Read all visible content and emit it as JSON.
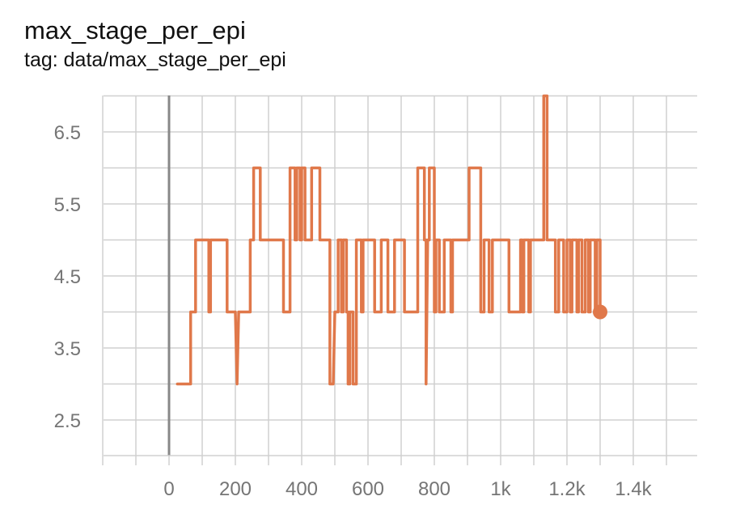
{
  "header": {
    "title": "max_stage_per_epi",
    "subtitle": "tag: data/max_stage_per_epi"
  },
  "colors": {
    "series": "#e0784a",
    "grid": "#d0d0d0",
    "zero_axis": "#888888",
    "tick_text": "#757575"
  },
  "chart_data": {
    "type": "line",
    "title": "max_stage_per_epi",
    "subtitle": "tag: data/max_stage_per_epi",
    "xlim": [
      -200,
      1600
    ],
    "ylim": [
      2,
      7
    ],
    "grid": true,
    "legend": "none",
    "x_ticks": [
      {
        "value": 0,
        "label": "0"
      },
      {
        "value": 200,
        "label": "200"
      },
      {
        "value": 400,
        "label": "400"
      },
      {
        "value": 600,
        "label": "600"
      },
      {
        "value": 800,
        "label": "800"
      },
      {
        "value": 1000,
        "label": "1k"
      },
      {
        "value": 1200,
        "label": "1.2k"
      },
      {
        "value": 1400,
        "label": "1.4k"
      }
    ],
    "y_ticks": [
      {
        "value": 2.5,
        "label": "2.5"
      },
      {
        "value": 3.5,
        "label": "3.5"
      },
      {
        "value": 4.5,
        "label": "4.5"
      },
      {
        "value": 5.5,
        "label": "5.5"
      },
      {
        "value": 6.5,
        "label": "6.5"
      }
    ],
    "series": [
      {
        "color": "#e0784a",
        "points": [
          [
            25,
            3
          ],
          [
            65,
            3
          ],
          [
            65,
            4
          ],
          [
            80,
            4
          ],
          [
            80,
            5
          ],
          [
            120,
            5
          ],
          [
            120,
            4
          ],
          [
            125,
            4
          ],
          [
            125,
            5
          ],
          [
            175,
            5
          ],
          [
            175,
            4
          ],
          [
            200,
            4
          ],
          [
            205,
            3
          ],
          [
            210,
            4
          ],
          [
            245,
            4
          ],
          [
            245,
            5
          ],
          [
            255,
            5
          ],
          [
            255,
            6
          ],
          [
            275,
            6
          ],
          [
            275,
            5
          ],
          [
            345,
            5
          ],
          [
            345,
            4
          ],
          [
            365,
            4
          ],
          [
            365,
            6
          ],
          [
            380,
            6
          ],
          [
            380,
            5
          ],
          [
            385,
            5
          ],
          [
            385,
            6
          ],
          [
            395,
            6
          ],
          [
            395,
            5
          ],
          [
            400,
            5
          ],
          [
            400,
            6
          ],
          [
            410,
            6
          ],
          [
            410,
            5
          ],
          [
            430,
            5
          ],
          [
            430,
            6
          ],
          [
            455,
            6
          ],
          [
            455,
            5
          ],
          [
            485,
            5
          ],
          [
            485,
            3
          ],
          [
            495,
            3
          ],
          [
            500,
            4
          ],
          [
            510,
            4
          ],
          [
            510,
            5
          ],
          [
            520,
            5
          ],
          [
            520,
            4
          ],
          [
            525,
            4
          ],
          [
            525,
            5
          ],
          [
            535,
            5
          ],
          [
            535,
            4
          ],
          [
            540,
            4
          ],
          [
            540,
            3
          ],
          [
            545,
            3
          ],
          [
            545,
            4
          ],
          [
            555,
            4
          ],
          [
            555,
            3
          ],
          [
            565,
            3
          ],
          [
            565,
            5
          ],
          [
            580,
            5
          ],
          [
            580,
            4
          ],
          [
            585,
            4
          ],
          [
            585,
            5
          ],
          [
            620,
            5
          ],
          [
            620,
            4
          ],
          [
            640,
            4
          ],
          [
            640,
            5
          ],
          [
            660,
            5
          ],
          [
            660,
            4
          ],
          [
            680,
            4
          ],
          [
            680,
            5
          ],
          [
            710,
            5
          ],
          [
            710,
            4
          ],
          [
            750,
            4
          ],
          [
            750,
            6
          ],
          [
            770,
            6
          ],
          [
            770,
            5
          ],
          [
            775,
            5
          ],
          [
            775,
            3
          ],
          [
            780,
            5
          ],
          [
            785,
            5
          ],
          [
            785,
            6
          ],
          [
            800,
            6
          ],
          [
            800,
            4
          ],
          [
            805,
            4
          ],
          [
            805,
            5
          ],
          [
            815,
            5
          ],
          [
            815,
            4
          ],
          [
            830,
            4
          ],
          [
            830,
            5
          ],
          [
            850,
            5
          ],
          [
            850,
            4
          ],
          [
            855,
            4
          ],
          [
            855,
            5
          ],
          [
            905,
            5
          ],
          [
            905,
            6
          ],
          [
            940,
            6
          ],
          [
            940,
            4
          ],
          [
            950,
            4
          ],
          [
            950,
            5
          ],
          [
            965,
            5
          ],
          [
            965,
            4
          ],
          [
            975,
            4
          ],
          [
            975,
            5
          ],
          [
            1025,
            5
          ],
          [
            1025,
            4
          ],
          [
            1060,
            4
          ],
          [
            1060,
            5
          ],
          [
            1065,
            5
          ],
          [
            1065,
            4
          ],
          [
            1070,
            4
          ],
          [
            1070,
            5
          ],
          [
            1085,
            5
          ],
          [
            1085,
            4
          ],
          [
            1090,
            4
          ],
          [
            1090,
            5
          ],
          [
            1130,
            5
          ],
          [
            1130,
            7
          ],
          [
            1140,
            7
          ],
          [
            1140,
            5
          ],
          [
            1165,
            5
          ],
          [
            1165,
            4
          ],
          [
            1175,
            4
          ],
          [
            1175,
            5
          ],
          [
            1190,
            5
          ],
          [
            1190,
            4
          ],
          [
            1200,
            4
          ],
          [
            1200,
            5
          ],
          [
            1210,
            5
          ],
          [
            1210,
            4
          ],
          [
            1215,
            4
          ],
          [
            1215,
            5
          ],
          [
            1230,
            5
          ],
          [
            1230,
            4
          ],
          [
            1235,
            4
          ],
          [
            1235,
            5
          ],
          [
            1245,
            5
          ],
          [
            1245,
            4
          ],
          [
            1255,
            4
          ],
          [
            1255,
            5
          ],
          [
            1265,
            5
          ],
          [
            1265,
            4
          ],
          [
            1270,
            4
          ],
          [
            1270,
            5
          ],
          [
            1285,
            5
          ],
          [
            1285,
            4
          ],
          [
            1290,
            4
          ],
          [
            1290,
            5
          ],
          [
            1300,
            5
          ],
          [
            1300,
            4
          ]
        ],
        "last_point": [
          1300,
          4
        ]
      }
    ]
  }
}
